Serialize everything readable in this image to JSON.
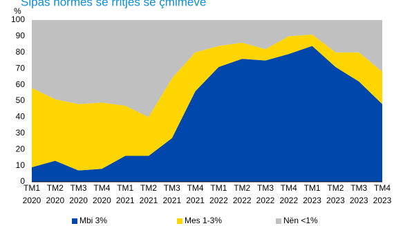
{
  "chart_data": {
    "type": "area",
    "stacked": true,
    "title": "Sipas normës së rritjes së çmimeve",
    "y_unit": "%",
    "ylim": [
      0,
      100
    ],
    "yticks": [
      0,
      10,
      20,
      30,
      40,
      50,
      60,
      70,
      80,
      90,
      100
    ],
    "grid": false,
    "legend_position": "bottom",
    "categories": [
      [
        "TM1",
        "2020"
      ],
      [
        "TM2",
        "2020"
      ],
      [
        "TM3",
        "2020"
      ],
      [
        "TM4",
        "2020"
      ],
      [
        "TM1",
        "2021"
      ],
      [
        "TM2",
        "2021"
      ],
      [
        "TM3",
        "2021"
      ],
      [
        "TM4",
        "2021"
      ],
      [
        "TM1",
        "2022"
      ],
      [
        "TM2",
        "2022"
      ],
      [
        "TM3",
        "2022"
      ],
      [
        "TM4",
        "2022"
      ],
      [
        "TM1",
        "2023"
      ],
      [
        "TM2",
        "2023"
      ],
      [
        "TM3",
        "2023"
      ],
      [
        "TM4",
        "2023"
      ]
    ],
    "series": [
      {
        "name": "Mbi 3%",
        "color": "#0047ab",
        "values": [
          9,
          13,
          7,
          8,
          16,
          16,
          27,
          56,
          71,
          76,
          75,
          79,
          84,
          71,
          62,
          48
        ]
      },
      {
        "name": "Mes 1-3%",
        "color": "#ffd500",
        "values": [
          49,
          38,
          41,
          41,
          31,
          24,
          37,
          24,
          13,
          10,
          7,
          11,
          7,
          9,
          18,
          20
        ]
      },
      {
        "name": "Nën <1%",
        "color": "#c0c0c0",
        "values": [
          42,
          49,
          52,
          51,
          53,
          60,
          36,
          20,
          16,
          14,
          18,
          10,
          9,
          20,
          20,
          32
        ]
      }
    ],
    "title_color": "#0b8fd6"
  }
}
